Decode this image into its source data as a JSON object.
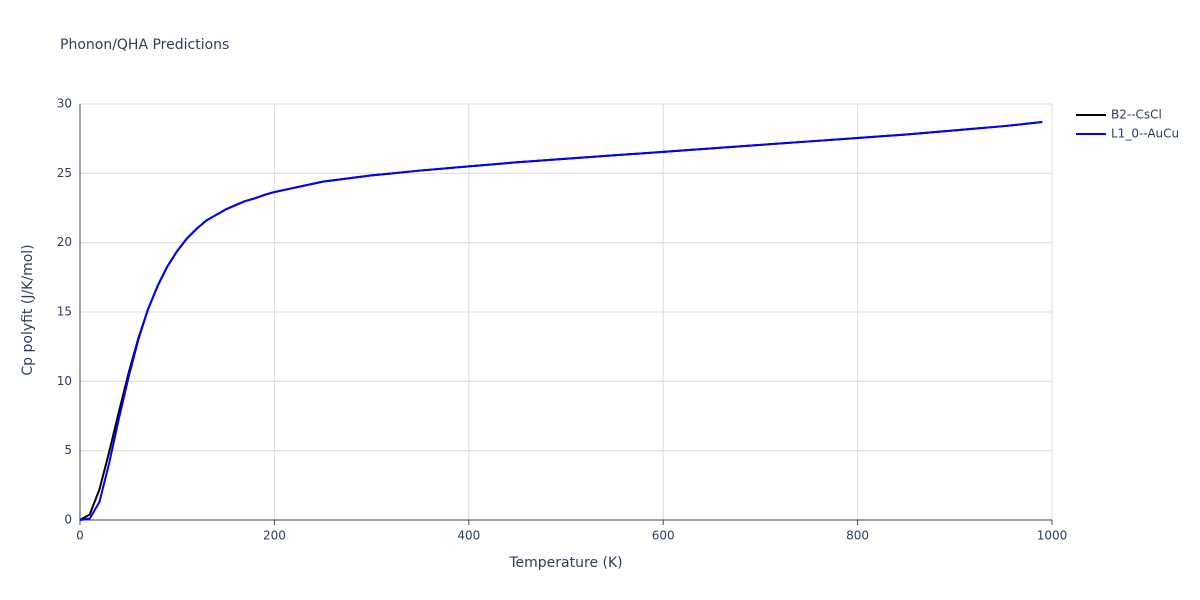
{
  "chart_data": {
    "type": "line",
    "title": "Phonon/QHA Predictions",
    "x_label": "Temperature (K)",
    "y_label": "Cp polyfit (J/K/mol)",
    "x": [
      0,
      10,
      20,
      30,
      40,
      50,
      60,
      70,
      80,
      90,
      100,
      110,
      120,
      130,
      140,
      150,
      160,
      170,
      180,
      190,
      200,
      250,
      300,
      350,
      400,
      450,
      500,
      550,
      600,
      650,
      700,
      750,
      800,
      850,
      900,
      950,
      990
    ],
    "series": [
      {
        "name": "B2--CsCl",
        "color": "#000000",
        "values": [
          0,
          0.4,
          2.2,
          4.9,
          7.8,
          10.6,
          13.1,
          15.2,
          16.9,
          18.3,
          19.4,
          20.3,
          21.0,
          21.6,
          22.0,
          22.4,
          22.7,
          23.0,
          23.2,
          23.45,
          23.65,
          24.4,
          24.85,
          25.2,
          25.5,
          25.8,
          26.05,
          26.3,
          26.55,
          26.8,
          27.05,
          27.3,
          27.55,
          27.8,
          28.1,
          28.4,
          28.7
        ]
      },
      {
        "name": "L1_0--AuCu",
        "color": "#0000ff",
        "values": [
          0,
          0.1,
          1.3,
          4.1,
          7.3,
          10.3,
          13.0,
          15.2,
          16.9,
          18.3,
          19.4,
          20.3,
          21.0,
          21.6,
          22.0,
          22.4,
          22.7,
          23.0,
          23.2,
          23.45,
          23.65,
          24.4,
          24.85,
          25.2,
          25.5,
          25.8,
          26.05,
          26.3,
          26.55,
          26.8,
          27.05,
          27.3,
          27.55,
          27.8,
          28.1,
          28.4,
          28.7
        ]
      }
    ],
    "xlim": [
      0,
      1000
    ],
    "xticks": [
      0,
      200,
      400,
      600,
      800,
      1000
    ],
    "ylim": [
      0,
      30
    ],
    "yticks": [
      0,
      5,
      10,
      15,
      20,
      25,
      30
    ],
    "grid": true,
    "legend": "right"
  }
}
